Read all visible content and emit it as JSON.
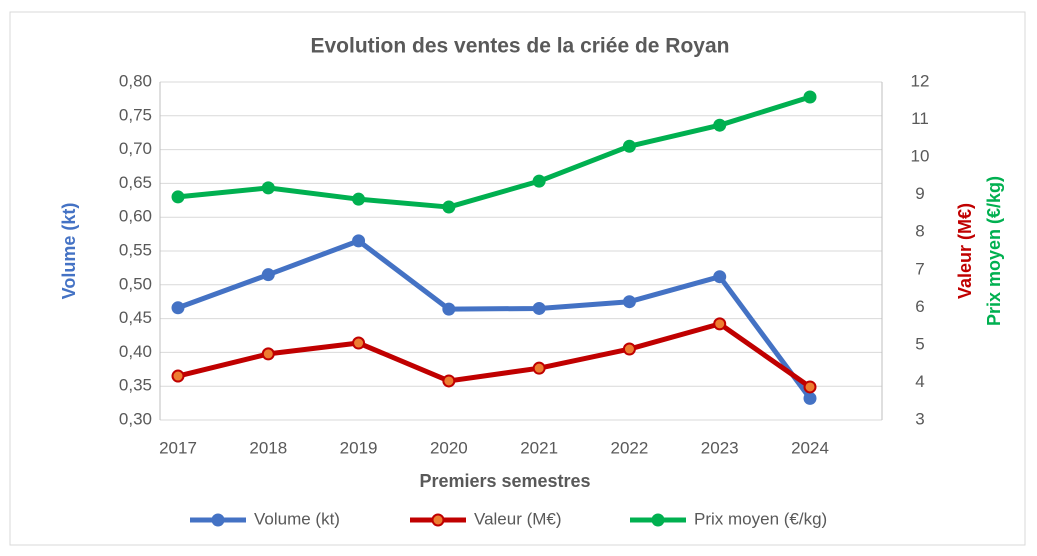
{
  "chart_data": {
    "type": "line",
    "title": "Evolution des ventes de la criée de Royan",
    "x_label": "Premiers semestres",
    "y_label": "Volume (kt)",
    "y2_labels": [
      "Valeur (M€)",
      "Prix moyen (€/kg)"
    ],
    "categories": [
      "2017",
      "2018",
      "2019",
      "2020",
      "2021",
      "2022",
      "2023",
      "2024"
    ],
    "series": [
      {
        "name": "Volume (kt)",
        "color": "#4472c4",
        "marker_fill": "#4472c4",
        "axis": "y",
        "values": [
          0.466,
          0.515,
          0.565,
          0.464,
          0.465,
          0.475,
          0.512,
          0.332
        ]
      },
      {
        "name": "Valeur (M€)",
        "color": "#c00000",
        "marker_fill": "#ed7d31",
        "axis": "y2",
        "values": [
          4.17,
          4.76,
          5.05,
          4.04,
          4.38,
          4.89,
          5.56,
          3.88
        ]
      },
      {
        "name": "Prix moyen (€/kg)",
        "color": "#00b050",
        "marker_fill": "#00b050",
        "axis": "y2",
        "values": [
          8.94,
          9.18,
          8.88,
          8.67,
          9.36,
          10.29,
          10.85,
          11.6
        ]
      }
    ],
    "ylim": [
      0.3,
      0.8
    ],
    "yticks": [
      {
        "value": 0.3,
        "label": "0,30"
      },
      {
        "value": 0.35,
        "label": "0,35"
      },
      {
        "value": 0.4,
        "label": "0,40"
      },
      {
        "value": 0.45,
        "label": "0,45"
      },
      {
        "value": 0.5,
        "label": "0,50"
      },
      {
        "value": 0.55,
        "label": "0,55"
      },
      {
        "value": 0.6,
        "label": "0,60"
      },
      {
        "value": 0.65,
        "label": "0,65"
      },
      {
        "value": 0.7,
        "label": "0,70"
      },
      {
        "value": 0.75,
        "label": "0,75"
      },
      {
        "value": 0.8,
        "label": "0,80"
      }
    ],
    "y2lim": [
      3,
      12
    ],
    "y2ticks": [
      3,
      4,
      5,
      6,
      7,
      8,
      9,
      10,
      11,
      12
    ],
    "grid": true,
    "legend": "bottom"
  }
}
